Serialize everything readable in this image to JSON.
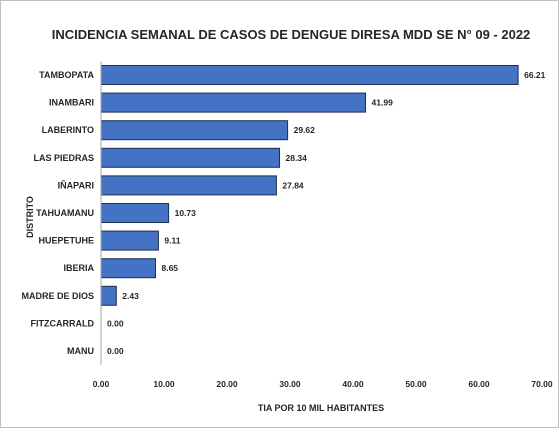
{
  "chart_data": {
    "type": "bar",
    "orientation": "horizontal",
    "title": "INCIDENCIA SEMANAL DE CASOS DE DENGUE DIRESA MDD SE N° 09 - 2022",
    "xlabel": "TIA POR 10 MIL HABITANTES",
    "ylabel": "DISTRITO",
    "categories": [
      "TAMBOPATA",
      "INAMBARI",
      "LABERINTO",
      "LAS PIEDRAS",
      "IÑAPARI",
      "TAHUAMANU",
      "HUEPETUHE",
      "IBERIA",
      "MADRE DE DIOS",
      "FITZCARRALD",
      "MANU"
    ],
    "values": [
      66.21,
      41.99,
      29.62,
      28.34,
      27.84,
      10.73,
      9.11,
      8.65,
      2.43,
      0.0,
      0.0
    ],
    "value_labels": [
      "66.21",
      "41.99",
      "29.62",
      "28.34",
      "27.84",
      "10.73",
      "9.11",
      "8.65",
      "2.43",
      "0.00",
      "0.00"
    ],
    "xlim": [
      0,
      70
    ],
    "x_ticks": [
      "0.00",
      "10.00",
      "20.00",
      "30.00",
      "40.00",
      "50.00",
      "60.00",
      "70.00"
    ],
    "grid": false,
    "legend": "none",
    "colors": {
      "bar_fill": "#4472c4",
      "bar_stroke": "#1f2f4f",
      "axis": "#a6a6a6"
    }
  }
}
